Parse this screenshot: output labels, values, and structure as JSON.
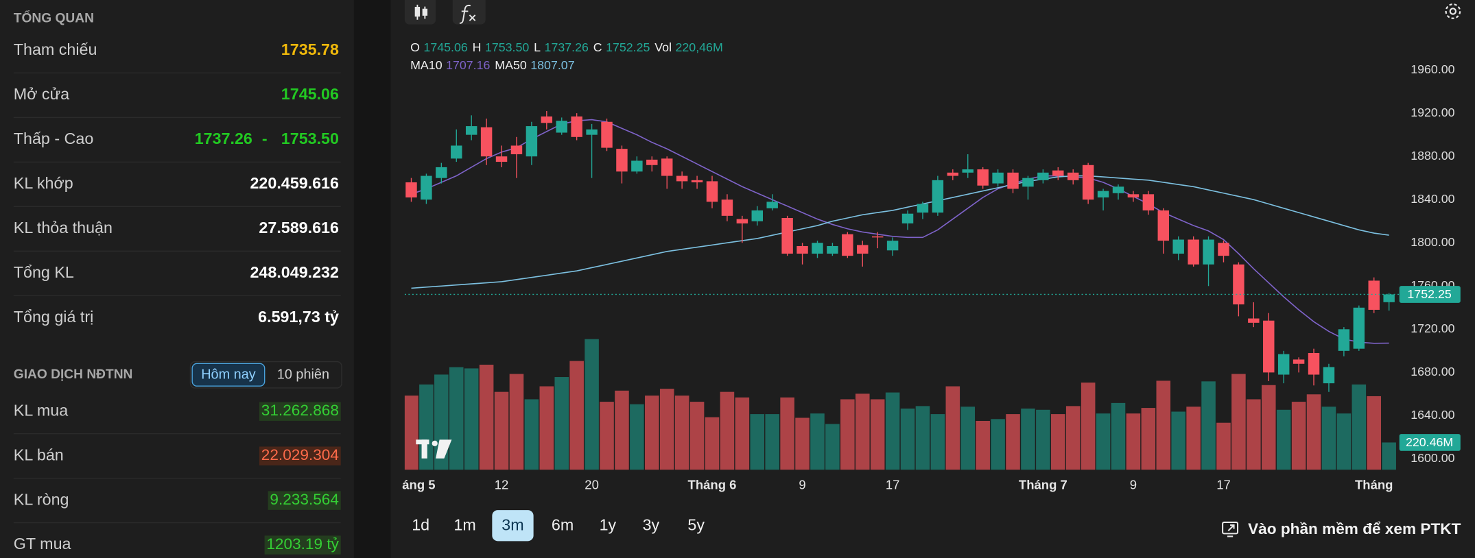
{
  "overview": {
    "title": "TỔNG QUAN",
    "rows": [
      {
        "label": "Tham chiếu",
        "value": "1735.78",
        "color": "#f0b90b"
      },
      {
        "label": "Mở cửa",
        "value": "1745.06",
        "color": "#22c922"
      },
      {
        "label": "Thấp - Cao",
        "low": "1737.26",
        "separator": "-",
        "high": "1753.50",
        "color": "#22c922"
      },
      {
        "label": "KL khớp",
        "value": "220.459.616",
        "color": "#ffffff"
      },
      {
        "label": "KL thỏa thuận",
        "value": "27.589.616",
        "color": "#ffffff"
      },
      {
        "label": "Tổng KL",
        "value": "248.049.232",
        "color": "#ffffff"
      },
      {
        "label": "Tổng giá trị",
        "value": "6.591,73 tỷ",
        "color": "#ffffff"
      }
    ]
  },
  "foreign": {
    "title": "GIAO DỊCH NĐTNN",
    "tabs": [
      "Hôm nay",
      "10 phiên"
    ],
    "active_tab": 0,
    "rows": [
      {
        "label": "KL mua",
        "value": "31.262.868",
        "color": "#34cf34",
        "background": "#243d1f"
      },
      {
        "label": "KL bán",
        "value": "22.029.304",
        "color": "#ff6b4a",
        "background": "#4a2619"
      },
      {
        "label": "KL ròng",
        "value": "9.233.564",
        "color": "#34cf34",
        "background": "#243d1f"
      },
      {
        "label": "GT mua",
        "value": "1203.19 tỷ",
        "color": "#34cf34",
        "background": "#243d1f"
      }
    ]
  },
  "chart_data": {
    "type": "candlestick",
    "header": [
      {
        "label": "O",
        "value": "1745.06"
      },
      {
        "label": "H",
        "value": "1753.50"
      },
      {
        "label": "L",
        "value": "1737.26"
      },
      {
        "label": "C",
        "value": "1752.25"
      },
      {
        "label": "Vol",
        "value": "220,46M"
      }
    ],
    "categories": [
      "áng 5",
      null,
      null,
      null,
      null,
      null,
      "12",
      null,
      null,
      null,
      null,
      null,
      "20",
      null,
      null,
      null,
      null,
      null,
      null,
      null,
      "Tháng 6",
      null,
      null,
      null,
      null,
      null,
      "9",
      null,
      null,
      null,
      null,
      null,
      "17",
      null,
      null,
      null,
      null,
      null,
      null,
      null,
      null,
      null,
      "Tháng 7",
      null,
      null,
      null,
      null,
      null,
      "9",
      null,
      null,
      null,
      null,
      null,
      "17",
      null,
      null,
      null,
      null,
      null,
      null,
      null,
      null,
      null,
      "Tháng",
      null
    ],
    "open": [
      1856,
      1840,
      1860,
      1878,
      1900,
      1907,
      1880,
      1890,
      1880,
      1917,
      1902,
      1917,
      1900,
      1912,
      1887,
      1866,
      1877,
      1878,
      1862,
      1858,
      1857,
      1840,
      1822,
      1820,
      1832,
      1823,
      1797,
      1790,
      1790,
      1808,
      1798,
      1806,
      1793,
      1818,
      1828,
      1828,
      1865,
      1865,
      1868,
      1855,
      1865,
      1852,
      1858,
      1867,
      1865,
      1872,
      1842,
      1846,
      1845,
      1845,
      1830,
      1790,
      1803,
      1780,
      1800,
      1780,
      1730,
      1728,
      1678,
      1692,
      1698,
      1670,
      1700,
      1702,
      1765,
      1745.06
    ],
    "high": [
      1860,
      1864,
      1874,
      1905,
      1918,
      1915,
      1890,
      1898,
      1912,
      1922,
      1916,
      1920,
      1910,
      1915,
      1890,
      1880,
      1880,
      1880,
      1866,
      1862,
      1862,
      1845,
      1825,
      1834,
      1845,
      1825,
      1800,
      1802,
      1800,
      1810,
      1802,
      1810,
      1805,
      1830,
      1838,
      1862,
      1868,
      1882,
      1870,
      1868,
      1868,
      1862,
      1868,
      1870,
      1868,
      1874,
      1850,
      1854,
      1848,
      1848,
      1832,
      1806,
      1806,
      1806,
      1802,
      1782,
      1745,
      1735,
      1700,
      1694,
      1702,
      1688,
      1722,
      1742,
      1768,
      1753.5
    ],
    "low": [
      1838,
      1836,
      1855,
      1875,
      1895,
      1872,
      1870,
      1860,
      1872,
      1905,
      1900,
      1895,
      1860,
      1885,
      1855,
      1864,
      1866,
      1850,
      1850,
      1850,
      1832,
      1820,
      1800,
      1816,
      1830,
      1788,
      1780,
      1786,
      1788,
      1786,
      1778,
      1795,
      1788,
      1812,
      1822,
      1825,
      1858,
      1860,
      1850,
      1852,
      1846,
      1840,
      1855,
      1858,
      1854,
      1836,
      1830,
      1840,
      1838,
      1826,
      1790,
      1784,
      1778,
      1760,
      1782,
      1732,
      1722,
      1672,
      1670,
      1680,
      1668,
      1662,
      1695,
      1700,
      1735,
      1737.26
    ],
    "close": [
      1842,
      1862,
      1870,
      1890,
      1908,
      1880,
      1875,
      1882,
      1908,
      1911,
      1913,
      1898,
      1905,
      1888,
      1866,
      1876,
      1872,
      1862,
      1857,
      1856,
      1838,
      1825,
      1818,
      1830,
      1838,
      1790,
      1790,
      1800,
      1797,
      1788,
      1790,
      1805,
      1802,
      1827,
      1836,
      1858,
      1862,
      1868,
      1853,
      1865,
      1850,
      1860,
      1865,
      1862,
      1858,
      1840,
      1848,
      1852,
      1842,
      1830,
      1802,
      1803,
      1780,
      1803,
      1788,
      1743,
      1726,
      1680,
      1697,
      1688,
      1678,
      1685,
      1720,
      1740,
      1738,
      1752.25
    ],
    "volume": [
      600,
      690,
      770,
      830,
      820,
      850,
      630,
      775,
      570,
      675,
      750,
      880,
      1057,
      550,
      640,
      530,
      600,
      655,
      600,
      550,
      425,
      630,
      585,
      450,
      450,
      585,
      420,
      455,
      370,
      570,
      615,
      570,
      625,
      495,
      515,
      450,
      675,
      510,
      395,
      410,
      450,
      495,
      485,
      450,
      515,
      705,
      455,
      540,
      455,
      500,
      720,
      470,
      510,
      715,
      380,
      775,
      570,
      685,
      485,
      550,
      610,
      510,
      455,
      690,
      595,
      220.46
    ],
    "volume_label": "220.46M",
    "up_color": "#22a897",
    "down_color": "#f7525f",
    "volume_up_color": "#1d6a60",
    "volume_down_color": "#ad4347",
    "series": [
      {
        "name": "MA10",
        "color": "#7e63c9",
        "values": [
          1845,
          1850,
          1856,
          1862,
          1870,
          1878,
          1884,
          1888,
          1896,
          1903,
          1910,
          1913,
          1914,
          1912,
          1906,
          1900,
          1893,
          1887,
          1880,
          1873,
          1866,
          1859,
          1852,
          1846,
          1840,
          1834,
          1828,
          1822,
          1817,
          1813,
          1810,
          1808,
          1806,
          1805,
          1805,
          1812,
          1822,
          1832,
          1842,
          1850,
          1855,
          1859,
          1862,
          1862,
          1861,
          1860,
          1856,
          1850,
          1843,
          1836,
          1828,
          1822,
          1816,
          1811,
          1803,
          1790,
          1776,
          1763,
          1750,
          1738,
          1727,
          1718,
          1711,
          1708,
          1707,
          1707.16
        ]
      },
      {
        "name": "MA50",
        "color": "#7cc0e0",
        "values": [
          1758,
          1759,
          1760,
          1761,
          1762,
          1763,
          1764,
          1766,
          1768,
          1770,
          1772,
          1774,
          1777,
          1780,
          1783,
          1786,
          1789,
          1792,
          1794,
          1796,
          1798,
          1800,
          1802,
          1804,
          1807,
          1810,
          1813,
          1816,
          1820,
          1823,
          1826,
          1828,
          1830,
          1833,
          1836,
          1839,
          1842,
          1845,
          1848,
          1851,
          1854,
          1857,
          1859,
          1861,
          1862,
          1862,
          1861,
          1860,
          1859,
          1858,
          1856,
          1854,
          1852,
          1849,
          1846,
          1843,
          1840,
          1836,
          1832,
          1828,
          1824,
          1820,
          1816,
          1812,
          1809,
          1807.07
        ]
      }
    ],
    "ylim": [
      1590,
      1990
    ],
    "yticks": [
      {
        "value": 1960,
        "label": "1960.00"
      },
      {
        "value": 1920,
        "label": "1920.00"
      },
      {
        "value": 1880,
        "label": "1880.00"
      },
      {
        "value": 1840,
        "label": "1840.00"
      },
      {
        "value": 1800,
        "label": "1800.00"
      },
      {
        "value": 1760,
        "label": "1760.00"
      },
      {
        "value": 1720,
        "label": "1720.00"
      },
      {
        "value": 1680,
        "label": "1680.00"
      },
      {
        "value": 1640,
        "label": "1640.00"
      },
      {
        "value": 1600,
        "label": "1600.00"
      }
    ],
    "grid": false
  },
  "ranges": [
    "1d",
    "1m",
    "3m",
    "6m",
    "1y",
    "3y",
    "5y"
  ],
  "active_range": 2,
  "software_link": "Vào phần mềm để xem PTKT"
}
